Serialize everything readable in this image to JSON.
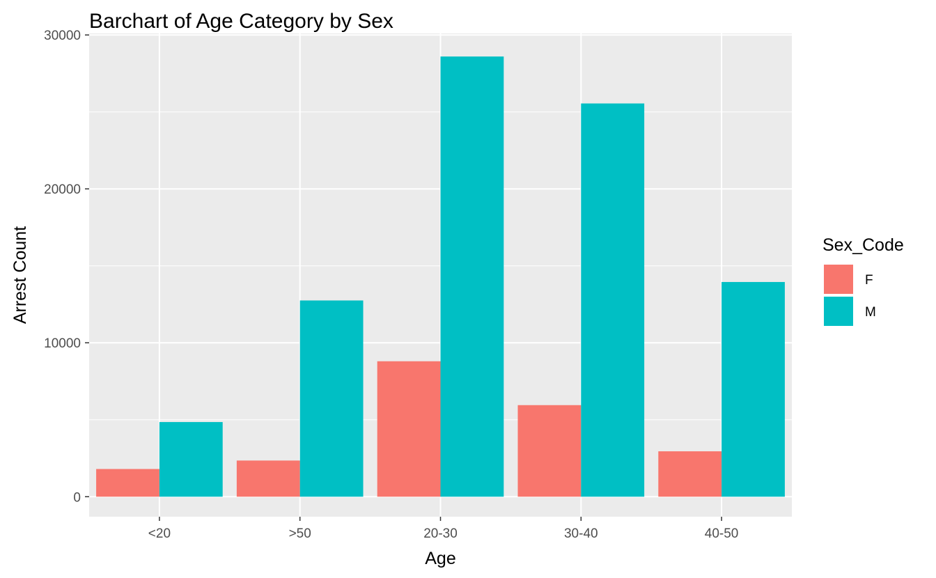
{
  "chart_data": {
    "type": "bar",
    "title": "Barchart of Age Category by Sex",
    "xlabel": "Age",
    "ylabel": "Arrest Count",
    "categories": [
      "<20",
      ">50",
      "20-30",
      "30-40",
      "40-50"
    ],
    "series": [
      {
        "name": "F",
        "color": "#F8766D",
        "values": [
          1800,
          2350,
          8800,
          5950,
          2950
        ]
      },
      {
        "name": "M",
        "color": "#00BFC4",
        "values": [
          4850,
          12750,
          28600,
          25550,
          13950
        ]
      }
    ],
    "ylim": [
      -1300,
      30100
    ],
    "yticks": [
      0,
      10000,
      20000,
      30000
    ],
    "ytick_labels": [
      "0",
      "10000",
      "20000",
      "30000"
    ],
    "grid": true,
    "legend": {
      "title": "Sex_Code",
      "position": "right",
      "entries": [
        "F",
        "M"
      ]
    },
    "panel_color": "#EBEBEB",
    "grid_color": "#FFFFFF"
  }
}
